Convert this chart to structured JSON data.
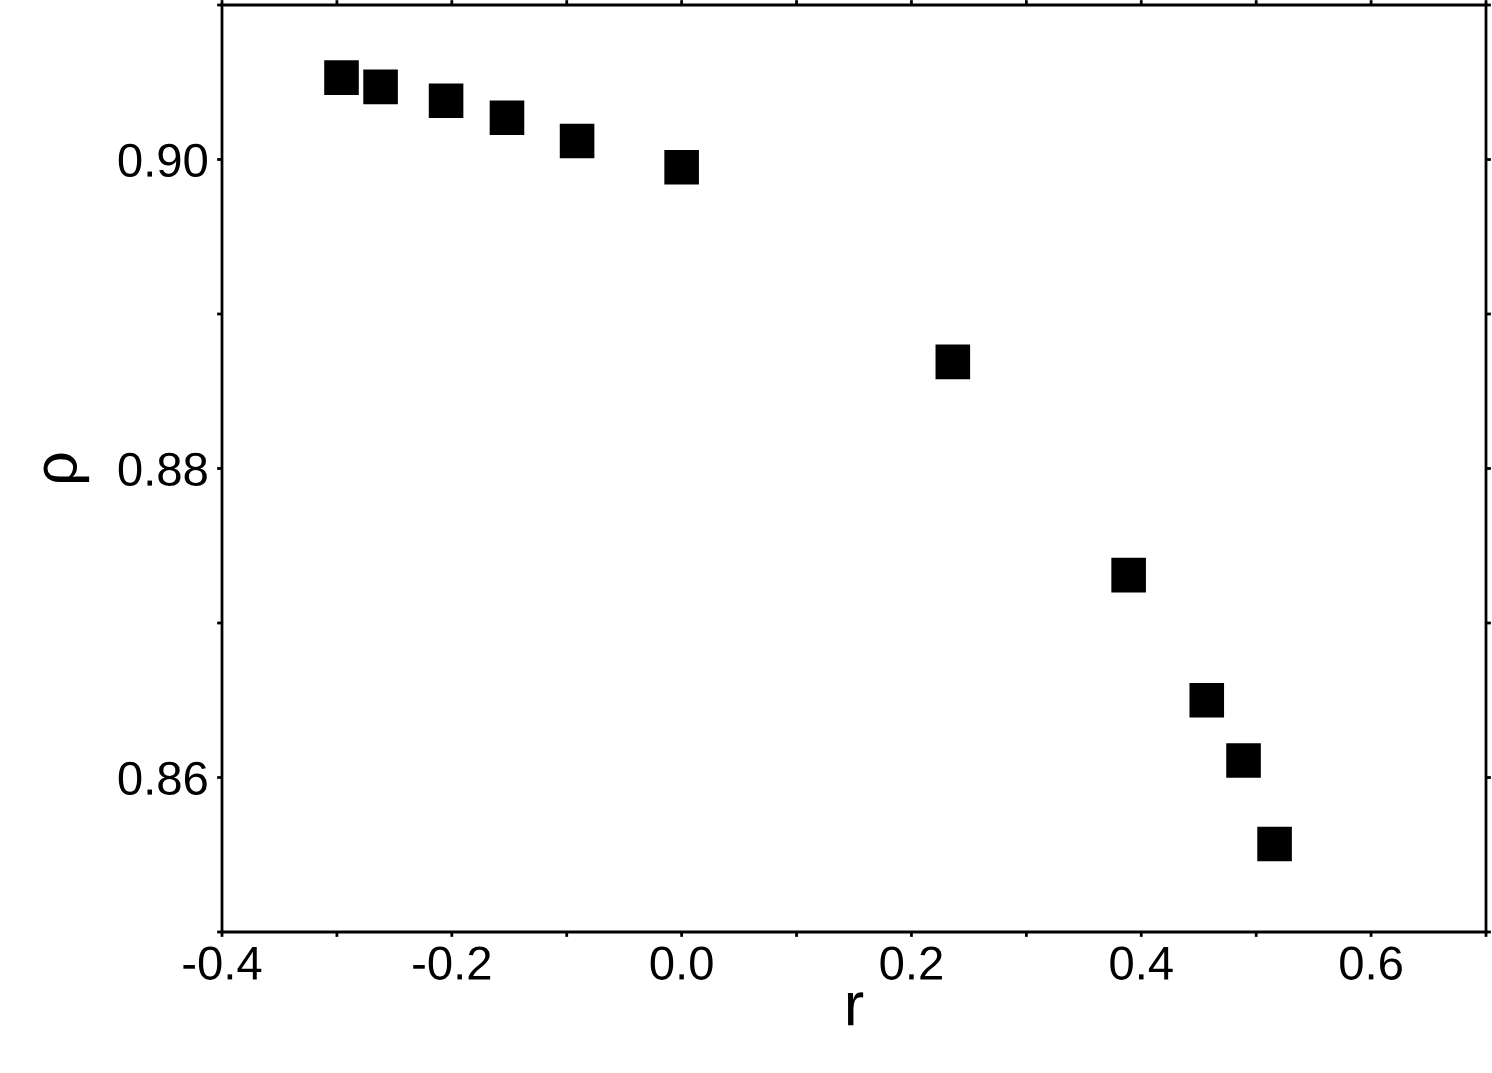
{
  "chart_data": {
    "type": "scatter",
    "xlabel": "r",
    "ylabel": "ρ",
    "x": [
      -0.296,
      -0.262,
      -0.205,
      -0.152,
      -0.091,
      0.0,
      0.236,
      0.389,
      0.457,
      0.489,
      0.516
    ],
    "series": [
      {
        "color": "#000000",
        "values": [
          0.9053,
          0.9047,
          0.9038,
          0.9027,
          0.9012,
          0.8995,
          0.8869,
          0.8731,
          0.865,
          0.8611,
          0.8557
        ]
      }
    ],
    "marker": "square",
    "grid": false,
    "legend": false,
    "xlim": [
      -0.4,
      0.7
    ],
    "ylim": [
      0.85,
      0.91
    ],
    "xticks": [
      -0.4,
      {
        "value": -0.3,
        "label": null
      },
      -0.2,
      {
        "value": -0.1,
        "label": null
      },
      {
        "value": 0,
        "label": "0.0"
      },
      {
        "value": 0.1,
        "label": null
      },
      0.2,
      {
        "value": 0.3,
        "label": null
      },
      0.4,
      {
        "value": 0.5,
        "label": null
      },
      0.6,
      {
        "value": 0.7,
        "label": null
      }
    ],
    "yticks": [
      {
        "value": 0.85,
        "label": null
      },
      0.86,
      {
        "value": 0.87,
        "label": null
      },
      0.88,
      {
        "value": 0.89,
        "label": null
      },
      {
        "value": 0.9,
        "label": "0.90"
      },
      {
        "value": 0.91,
        "label": null
      }
    ]
  }
}
